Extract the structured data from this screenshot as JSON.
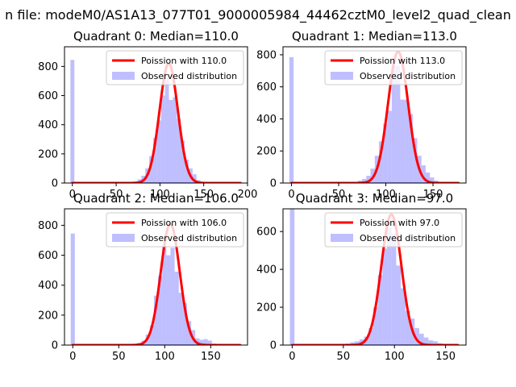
{
  "figure": {
    "suptitle": "n file: modeM0/AS1A13_077T01_9000005984_44462cztM0_level2_quad_clean"
  },
  "colors": {
    "hist": "#8080ff",
    "poisson": "#ff0000",
    "axis": "#000000",
    "background": "#ffffff"
  },
  "chart_data": [
    {
      "type": "bar",
      "title": "Quadrant 0: Median=110.0",
      "median": 110.0,
      "xlim": [
        -9,
        200
      ],
      "ylim": [
        0,
        935
      ],
      "xticks": [
        0,
        50,
        100,
        150,
        200
      ],
      "yticks": [
        0,
        200,
        400,
        600,
        800
      ],
      "bin_width": 4.5,
      "legend": {
        "position": "top-right",
        "poisson_label": "Poission with 110.0",
        "hist_label": "Observed distribution"
      },
      "poisson_peak": 820,
      "spike": {
        "x": 0,
        "value": 845
      },
      "bins": [
        [
          72,
          10
        ],
        [
          76.5,
          25
        ],
        [
          81,
          50
        ],
        [
          85.5,
          100
        ],
        [
          90,
          185
        ],
        [
          94.5,
          310
        ],
        [
          99,
          430
        ],
        [
          103.5,
          600
        ],
        [
          108,
          720
        ],
        [
          112.5,
          570
        ],
        [
          117,
          590
        ],
        [
          121.5,
          440
        ],
        [
          126,
          290
        ],
        [
          130.5,
          160
        ],
        [
          135,
          100
        ],
        [
          139.5,
          60
        ],
        [
          144,
          20
        ],
        [
          148.5,
          8
        ],
        [
          153,
          3
        ]
      ]
    },
    {
      "type": "bar",
      "title": "Quadrant 1: Median=113.0",
      "median": 113.0,
      "xlim": [
        -9,
        185
      ],
      "ylim": [
        0,
        850
      ],
      "xticks": [
        0,
        50,
        100,
        150
      ],
      "yticks": [
        0,
        200,
        400,
        600,
        800
      ],
      "bin_width": 4.5,
      "legend": {
        "position": "top-right",
        "poisson_label": "Poission with 113.0",
        "hist_label": "Observed distribution"
      },
      "poisson_peak": 820,
      "spike": {
        "x": 0,
        "value": 785
      },
      "bins": [
        [
          68,
          5
        ],
        [
          72.5,
          15
        ],
        [
          77,
          25
        ],
        [
          81.5,
          45
        ],
        [
          86,
          90
        ],
        [
          90.5,
          170
        ],
        [
          95,
          260
        ],
        [
          99.5,
          370
        ],
        [
          104,
          450
        ],
        [
          108.5,
          730
        ],
        [
          113,
          730
        ],
        [
          117.5,
          520
        ],
        [
          122,
          520
        ],
        [
          126.5,
          430
        ],
        [
          131,
          280
        ],
        [
          135.5,
          170
        ],
        [
          140,
          110
        ],
        [
          144.5,
          65
        ],
        [
          149,
          35
        ],
        [
          153.5,
          15
        ],
        [
          158,
          8
        ]
      ]
    },
    {
      "type": "bar",
      "title": "Quadrant 2: Median=106.0",
      "median": 106.0,
      "xlim": [
        -9,
        190
      ],
      "ylim": [
        0,
        910
      ],
      "xticks": [
        0,
        50,
        100,
        150
      ],
      "yticks": [
        0,
        200,
        400,
        600,
        800
      ],
      "bin_width": 4.5,
      "legend": {
        "position": "top-right",
        "poisson_label": "Poission with 106.0",
        "hist_label": "Observed distribution"
      },
      "poisson_peak": 810,
      "spike": {
        "x": 0,
        "value": 745
      },
      "bins": [
        [
          68,
          5
        ],
        [
          72.5,
          15
        ],
        [
          77,
          30
        ],
        [
          81.5,
          70
        ],
        [
          86,
          130
        ],
        [
          90.5,
          330
        ],
        [
          95,
          460
        ],
        [
          99.5,
          660
        ],
        [
          104,
          600
        ],
        [
          108.5,
          650
        ],
        [
          113,
          490
        ],
        [
          117.5,
          350
        ],
        [
          122,
          280
        ],
        [
          126.5,
          160
        ],
        [
          131,
          100
        ],
        [
          135.5,
          45
        ],
        [
          140,
          35
        ],
        [
          144.5,
          40
        ],
        [
          149,
          30
        ],
        [
          153.5,
          10
        ]
      ]
    },
    {
      "type": "bar",
      "title": "Quadrant 3: Median=97.0",
      "median": 97.0,
      "xlim": [
        -9,
        170
      ],
      "ylim": [
        0,
        720
      ],
      "xticks": [
        0,
        50,
        100,
        150
      ],
      "yticks": [
        0,
        200,
        400,
        600
      ],
      "bin_width": 4.5,
      "legend": {
        "position": "top-right",
        "poisson_label": "Poission with 97.0",
        "hist_label": "Observed distribution"
      },
      "poisson_peak": 690,
      "spike": {
        "x": 0,
        "value": 730
      },
      "bins": [
        [
          50,
          5
        ],
        [
          54.5,
          8
        ],
        [
          59,
          15
        ],
        [
          63.5,
          20
        ],
        [
          68,
          30
        ],
        [
          72.5,
          45
        ],
        [
          77,
          90
        ],
        [
          81.5,
          200
        ],
        [
          86,
          370
        ],
        [
          90.5,
          510
        ],
        [
          95,
          620
        ],
        [
          99.5,
          590
        ],
        [
          104,
          420
        ],
        [
          108.5,
          300
        ],
        [
          113,
          180
        ],
        [
          117.5,
          140
        ],
        [
          122,
          90
        ],
        [
          126.5,
          60
        ],
        [
          131,
          40
        ],
        [
          135.5,
          25
        ],
        [
          140,
          20
        ],
        [
          144.5,
          10
        ],
        [
          149,
          5
        ]
      ]
    }
  ]
}
